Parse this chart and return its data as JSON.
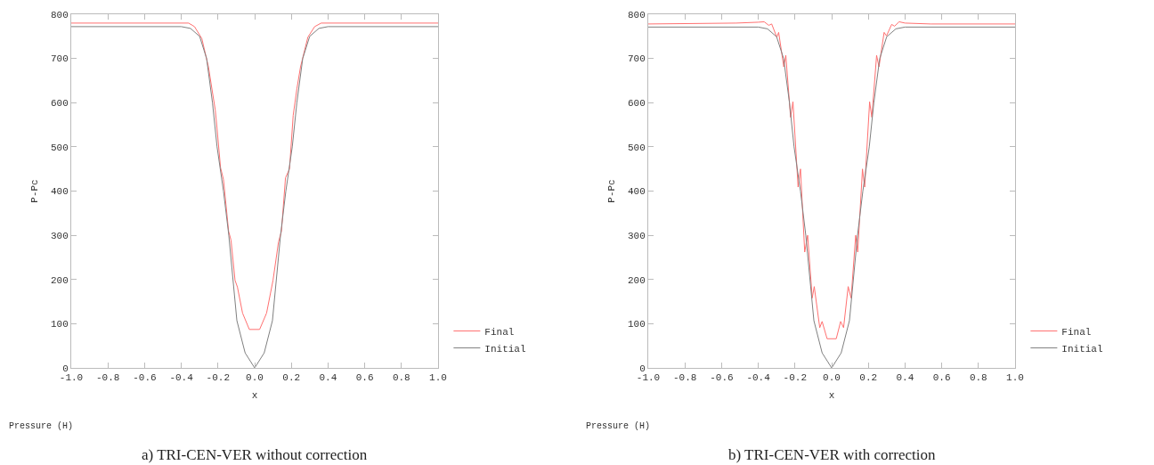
{
  "chart_data": [
    {
      "type": "line",
      "xlabel": "x",
      "ylabel": "P-Pc",
      "annotations": [
        "Pressure (H)",
        "a) TRI-CEN-VER without correction"
      ],
      "legend": "bottom right",
      "grid": false,
      "marker": "none",
      "line_style": "solid",
      "xlim": [
        -1,
        1
      ],
      "xticks": [
        {
          "value": -1,
          "label": "-1.0"
        },
        {
          "value": -0.8,
          "label": "-0.8"
        },
        {
          "value": -0.6,
          "label": "-0.6"
        },
        {
          "value": -0.4,
          "label": "-0.4"
        },
        {
          "value": -0.2,
          "label": "-0.2"
        },
        {
          "value": 0,
          "label": "0.0"
        },
        {
          "value": 0.2,
          "label": "0.2"
        },
        {
          "value": 0.4,
          "label": "0.4"
        },
        {
          "value": 0.6,
          "label": "0.6"
        },
        {
          "value": 0.8,
          "label": "0.8"
        },
        {
          "value": 1,
          "label": "1.0"
        }
      ],
      "ylim": [
        0,
        800
      ],
      "yticks": [
        0,
        100,
        200,
        300,
        400,
        500,
        600,
        700,
        800
      ],
      "series": [
        {
          "name": "Final",
          "color": "#ff7070",
          "x": [
            -1,
            -0.36,
            -0.328,
            -0.288,
            -0.252,
            -0.215,
            -0.207,
            -0.186,
            -0.17,
            -0.142,
            -0.129,
            -0.107,
            -0.094,
            -0.066,
            -0.029,
            0,
            0.027,
            0.065,
            0.1,
            0.13,
            0.146,
            0.168,
            0.19,
            0.21,
            0.23,
            0.25,
            0.29,
            0.327,
            0.363,
            1
          ],
          "values": [
            780,
            780,
            772,
            745,
            681,
            584,
            550,
            453,
            426,
            309,
            289,
            198,
            183,
            124,
            87,
            87,
            87,
            124,
            198,
            285,
            309,
            430,
            450,
            571,
            631,
            681,
            748,
            772,
            780,
            780
          ]
        },
        {
          "name": "Initial",
          "color": "#808080",
          "x": [
            -1,
            -0.4,
            -0.35,
            -0.3,
            -0.262,
            -0.23,
            -0.205,
            -0.17,
            -0.141,
            -0.097,
            -0.052,
            0,
            0.052,
            0.097,
            0.141,
            0.17,
            0.205,
            0.23,
            0.262,
            0.3,
            0.35,
            0.4,
            1
          ],
          "values": [
            772,
            772,
            768,
            750,
            700,
            600,
            500,
            400,
            300,
            107,
            34,
            0,
            34,
            107,
            300,
            400,
            500,
            600,
            700,
            750,
            768,
            772,
            772
          ]
        }
      ]
    },
    {
      "type": "line",
      "xlabel": "x",
      "ylabel": "P-Pc",
      "annotations": [
        "Pressure (H)",
        "b) TRI-CEN-VER with correction"
      ],
      "legend": "bottom right",
      "grid": false,
      "marker": "none",
      "line_style": "solid",
      "xlim": [
        -1,
        1
      ],
      "xticks": [
        {
          "value": -1,
          "label": "-1.0"
        },
        {
          "value": -0.8,
          "label": "-0.8"
        },
        {
          "value": -0.6,
          "label": "-0.6"
        },
        {
          "value": -0.4,
          "label": "-0.4"
        },
        {
          "value": -0.2,
          "label": "-0.2"
        },
        {
          "value": 0,
          "label": "0.0"
        },
        {
          "value": 0.2,
          "label": "0.2"
        },
        {
          "value": 0.4,
          "label": "0.4"
        },
        {
          "value": 0.6,
          "label": "0.6"
        },
        {
          "value": 0.8,
          "label": "0.8"
        },
        {
          "value": 1,
          "label": "1.0"
        }
      ],
      "ylim": [
        0,
        800
      ],
      "yticks": [
        0,
        100,
        200,
        300,
        400,
        500,
        600,
        700,
        800
      ],
      "series": [
        {
          "name": "Final",
          "color": "#ff7070",
          "x": [
            -1,
            -0.52,
            -0.4,
            -0.368,
            -0.343,
            -0.327,
            -0.299,
            -0.289,
            -0.261,
            -0.25,
            -0.224,
            -0.211,
            -0.183,
            -0.17,
            -0.147,
            -0.131,
            -0.106,
            -0.095,
            -0.065,
            -0.052,
            -0.025,
            0,
            0.025,
            0.049,
            0.065,
            0.09,
            0.106,
            0.131,
            0.142,
            0.168,
            0.18,
            0.207,
            0.219,
            0.245,
            0.258,
            0.286,
            0.299,
            0.327,
            0.343,
            0.368,
            0.4,
            0.54,
            1
          ],
          "values": [
            778,
            780,
            782,
            783,
            775,
            778,
            748,
            759,
            681,
            707,
            567,
            602,
            409,
            450,
            262,
            300,
            158,
            184,
            91,
            105,
            66,
            66,
            66,
            105,
            91,
            184,
            158,
            300,
            262,
            450,
            409,
            602,
            567,
            707,
            681,
            759,
            751,
            777,
            773,
            783,
            780,
            778,
            778
          ]
        },
        {
          "name": "Initial",
          "color": "#808080",
          "x": [
            -1,
            -0.4,
            -0.35,
            -0.3,
            -0.262,
            -0.23,
            -0.205,
            -0.17,
            -0.141,
            -0.097,
            -0.052,
            0,
            0.052,
            0.097,
            0.141,
            0.17,
            0.205,
            0.23,
            0.262,
            0.3,
            0.35,
            0.4,
            1
          ],
          "values": [
            771,
            771,
            767,
            749,
            700,
            600,
            500,
            400,
            300,
            107,
            34,
            0,
            34,
            107,
            300,
            400,
            500,
            600,
            700,
            749,
            767,
            771,
            771
          ]
        }
      ]
    }
  ]
}
